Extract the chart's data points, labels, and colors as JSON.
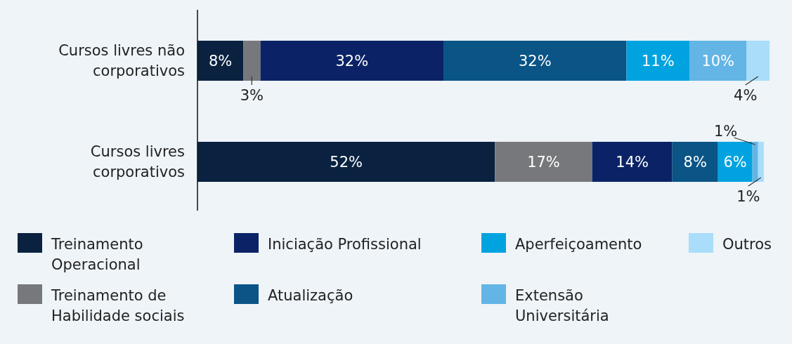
{
  "chart_data": {
    "type": "bar",
    "orientation": "horizontal",
    "stacked": true,
    "categories": [
      "Cursos livres não corporativos",
      "Cursos livres corporativos"
    ],
    "tick_labels": "y",
    "legend": "bottom",
    "series": [
      {
        "name": "Treinamento Operacional",
        "color": "#0a2240",
        "values": [
          8,
          52
        ],
        "value_labels": [
          "8%",
          "52%"
        ]
      },
      {
        "name": "Treinamento de Habilidade sociais",
        "color": "#76787b",
        "values": [
          3,
          17
        ],
        "value_labels": [
          "3%",
          "17%"
        ]
      },
      {
        "name": "Iniciação Profissional",
        "color": "#0b2366",
        "values": [
          32,
          14
        ],
        "value_labels": [
          "32%",
          "14%"
        ]
      },
      {
        "name": "Atualização",
        "color": "#0a5486",
        "values": [
          32,
          8
        ],
        "value_labels": [
          "32%",
          "8%"
        ]
      },
      {
        "name": "Aperfeiçoamento",
        "color": "#00a3e0",
        "values": [
          11,
          6
        ],
        "value_labels": [
          "11%",
          "6%"
        ]
      },
      {
        "name": "Extensão Universitária",
        "color": "#63b5e5",
        "values": [
          10,
          1
        ],
        "value_labels": [
          "10%",
          "1%"
        ]
      },
      {
        "name": "Outros",
        "color": "#a9ddfa",
        "values": [
          4,
          1
        ],
        "value_labels": [
          "4%",
          "1%"
        ]
      }
    ]
  }
}
